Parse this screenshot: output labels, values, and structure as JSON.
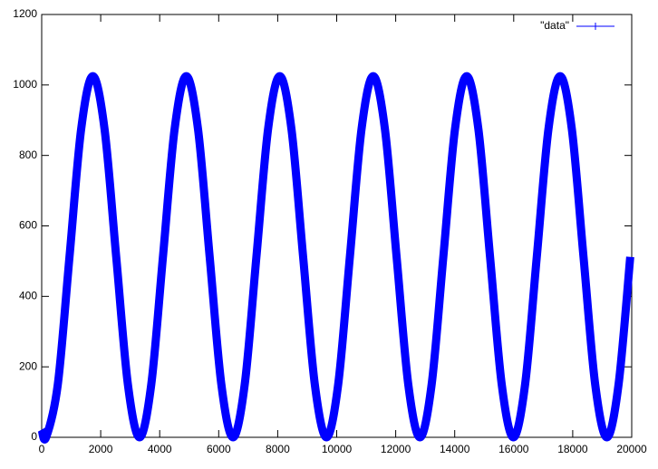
{
  "chart_data": {
    "type": "line",
    "x": [
      0,
      150,
      546,
      942,
      1338,
      1734,
      2130,
      2526,
      2922,
      3318,
      3714,
      4110,
      4506,
      4902,
      5298,
      5694,
      6090,
      6486,
      6882,
      7278,
      7674,
      8070,
      8466,
      8862,
      9258,
      9654,
      10050,
      10446,
      10842,
      11238,
      11634,
      12030,
      12426,
      12822,
      13218,
      13614,
      14010,
      14406,
      14802,
      15198,
      15594,
      15990,
      16386,
      16782,
      17178,
      17574,
      17970,
      18366,
      18762,
      19158,
      19554,
      19950
    ],
    "series": [
      {
        "name": "\"data\"",
        "color": "#0000ff",
        "values": [
          22,
          0,
          150,
          512,
          875,
          1025,
          875,
          512,
          150,
          0,
          150,
          512,
          875,
          1025,
          875,
          512,
          150,
          0,
          150,
          512,
          875,
          1025,
          875,
          512,
          150,
          0,
          150,
          512,
          875,
          1025,
          875,
          512,
          150,
          0,
          150,
          512,
          875,
          1025,
          875,
          512,
          150,
          0,
          150,
          512,
          875,
          1025,
          875,
          512,
          150,
          0,
          150,
          512
        ]
      }
    ],
    "xlim": [
      0,
      20000
    ],
    "xticks": [
      0,
      2000,
      4000,
      6000,
      8000,
      10000,
      12000,
      14000,
      16000,
      18000,
      20000
    ],
    "ylim": [
      0,
      1200
    ],
    "yticks": [
      0,
      200,
      400,
      600,
      800,
      1000,
      1200
    ],
    "grid": false,
    "legend": "top-right"
  }
}
